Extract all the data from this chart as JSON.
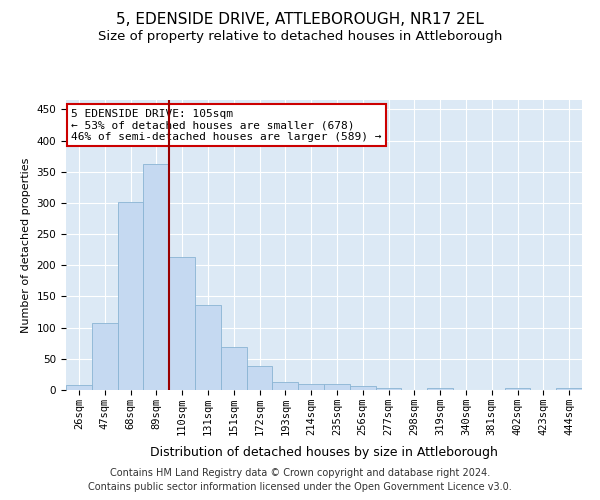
{
  "title": "5, EDENSIDE DRIVE, ATTLEBOROUGH, NR17 2EL",
  "subtitle": "Size of property relative to detached houses in Attleborough",
  "xlabel": "Distribution of detached houses by size in Attleborough",
  "ylabel": "Number of detached properties",
  "categories": [
    "26sqm",
    "47sqm",
    "68sqm",
    "89sqm",
    "110sqm",
    "131sqm",
    "151sqm",
    "172sqm",
    "193sqm",
    "214sqm",
    "235sqm",
    "256sqm",
    "277sqm",
    "298sqm",
    "319sqm",
    "340sqm",
    "381sqm",
    "402sqm",
    "423sqm",
    "444sqm"
  ],
  "values": [
    8,
    108,
    301,
    362,
    213,
    136,
    69,
    38,
    13,
    10,
    9,
    6,
    3,
    0,
    3,
    0,
    0,
    3,
    0,
    3
  ],
  "bar_color": "#c5d9f1",
  "bar_edge_color": "#8ab4d4",
  "vline_color": "#990000",
  "annotation_text": "5 EDENSIDE DRIVE: 105sqm\n← 53% of detached houses are smaller (678)\n46% of semi-detached houses are larger (589) →",
  "annotation_box_color": "#ffffff",
  "annotation_box_edge": "#cc0000",
  "ylim": [
    0,
    465
  ],
  "yticks": [
    0,
    50,
    100,
    150,
    200,
    250,
    300,
    350,
    400,
    450
  ],
  "plot_bg_color": "#dce9f5",
  "footer1": "Contains HM Land Registry data © Crown copyright and database right 2024.",
  "footer2": "Contains public sector information licensed under the Open Government Licence v3.0.",
  "title_fontsize": 11,
  "subtitle_fontsize": 9.5,
  "xlabel_fontsize": 9,
  "ylabel_fontsize": 8,
  "tick_fontsize": 7.5,
  "annotation_fontsize": 8,
  "footer_fontsize": 7
}
